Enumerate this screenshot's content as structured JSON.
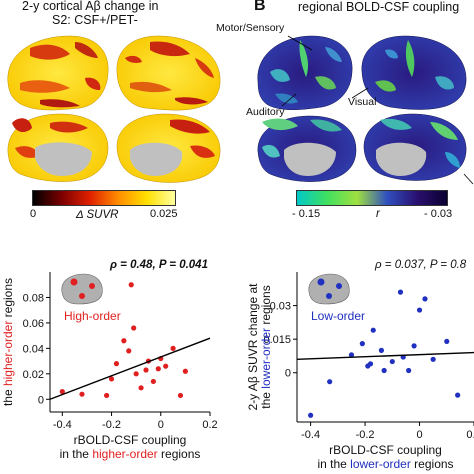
{
  "panel_a": {
    "title_line1": "2-y cortical Aβ change in",
    "title_line2": "S2: CSF+/PET-",
    "colorbar": {
      "min_label": "0",
      "max_label": "0.025",
      "quantity": "Δ SUVR",
      "colors": [
        "#000000",
        "#7a0000",
        "#e02000",
        "#ff8c00",
        "#ffe000",
        "#ffffa0"
      ]
    }
  },
  "panel_b": {
    "letter": "B",
    "title": "regional BOLD-CSF coupling",
    "labels": {
      "motor": "Motor/Sensory",
      "auditory": "Auditory",
      "visual": "Visual"
    },
    "colorbar": {
      "min_label": "- 0.15",
      "mid_label": "r",
      "max_label": "- 0.03",
      "colors": [
        "#00c8c8",
        "#40e060",
        "#a0e040",
        "#3050c0",
        "#2a1070",
        "#0a0030"
      ]
    }
  },
  "chart_data": [
    {
      "type": "scatter",
      "title": "",
      "stat": "ρ = 0.48, P = 0.041",
      "inset_label": "High-order",
      "xlabel_line1": "rBOLD-CSF coupling",
      "xlabel_line2_pre": "in the ",
      "xlabel_line2_hl": "higher-order",
      "xlabel_line2_post": " regions",
      "ylabel_pre": "the ",
      "ylabel_hl": "higher-order",
      "ylabel_post": " regions",
      "xlim": [
        -0.45,
        0.2
      ],
      "ylim": [
        -0.01,
        0.1
      ],
      "xticks": [
        "-0.4",
        "-0.2",
        "0",
        "0.2"
      ],
      "xtick_values": [
        -0.4,
        -0.2,
        0,
        0.2
      ],
      "yticks": [
        "0",
        "0.02",
        "0.04",
        "0.06",
        "0.08"
      ],
      "ytick_values": [
        0,
        0.02,
        0.04,
        0.06,
        0.08
      ],
      "point_color": "#e02020",
      "points": [
        {
          "x": -0.4,
          "y": 0.006
        },
        {
          "x": -0.32,
          "y": 0.004
        },
        {
          "x": -0.22,
          "y": 0.003
        },
        {
          "x": -0.2,
          "y": 0.016
        },
        {
          "x": -0.18,
          "y": 0.028
        },
        {
          "x": -0.15,
          "y": 0.046
        },
        {
          "x": -0.13,
          "y": 0.038
        },
        {
          "x": -0.12,
          "y": 0.09
        },
        {
          "x": -0.1,
          "y": 0.02
        },
        {
          "x": -0.08,
          "y": 0.009
        },
        {
          "x": -0.06,
          "y": 0.023
        },
        {
          "x": -0.05,
          "y": 0.03
        },
        {
          "x": -0.03,
          "y": 0.014
        },
        {
          "x": -0.01,
          "y": 0.024
        },
        {
          "x": 0.0,
          "y": 0.032
        },
        {
          "x": 0.02,
          "y": 0.026
        },
        {
          "x": 0.05,
          "y": 0.04
        },
        {
          "x": 0.08,
          "y": 0.003
        },
        {
          "x": 0.1,
          "y": 0.022
        },
        {
          "x": -0.11,
          "y": 0.056
        }
      ],
      "fit": {
        "x": [
          -0.45,
          0.2
        ],
        "y": [
          0.0,
          0.048
        ]
      }
    },
    {
      "type": "scatter",
      "title": "",
      "stat": "ρ = 0.037, P = 0.8",
      "inset_label": "Low-order",
      "xlabel_line1": "rBOLD-CSF coupling",
      "xlabel_line2_pre": "in the ",
      "xlabel_line2_hl": "lower-order",
      "xlabel_line2_post": " regions",
      "ylabel_line1": "2-y Aβ SUVR change at",
      "ylabel_pre": "the ",
      "ylabel_hl": "lower-order",
      "ylabel_post": " regions",
      "xlim": [
        -0.45,
        0.2
      ],
      "ylim": [
        -0.022,
        0.045
      ],
      "xticks": [
        "-0.4",
        "-0.2",
        "0",
        "0.2"
      ],
      "xtick_values": [
        -0.4,
        -0.2,
        0,
        0.2
      ],
      "yticks": [
        "0",
        "0.015",
        "0.03"
      ],
      "ytick_values": [
        0,
        0.015,
        0.03
      ],
      "point_color": "#2030c0",
      "points": [
        {
          "x": -0.4,
          "y": -0.019
        },
        {
          "x": -0.33,
          "y": -0.004
        },
        {
          "x": -0.25,
          "y": 0.008
        },
        {
          "x": -0.21,
          "y": 0.013
        },
        {
          "x": -0.19,
          "y": 0.003
        },
        {
          "x": -0.18,
          "y": 0.004
        },
        {
          "x": -0.17,
          "y": 0.019
        },
        {
          "x": -0.14,
          "y": 0.01
        },
        {
          "x": -0.13,
          "y": 0.001
        },
        {
          "x": -0.1,
          "y": 0.005
        },
        {
          "x": -0.07,
          "y": 0.036
        },
        {
          "x": -0.06,
          "y": 0.007
        },
        {
          "x": -0.04,
          "y": 0.001
        },
        {
          "x": -0.02,
          "y": 0.012
        },
        {
          "x": 0.0,
          "y": 0.028
        },
        {
          "x": 0.02,
          "y": 0.033
        },
        {
          "x": 0.05,
          "y": 0.006
        },
        {
          "x": 0.1,
          "y": 0.014
        },
        {
          "x": 0.14,
          "y": -0.01
        }
      ],
      "fit": {
        "x": [
          -0.45,
          0.2
        ],
        "y": [
          0.006,
          0.009
        ]
      }
    }
  ]
}
